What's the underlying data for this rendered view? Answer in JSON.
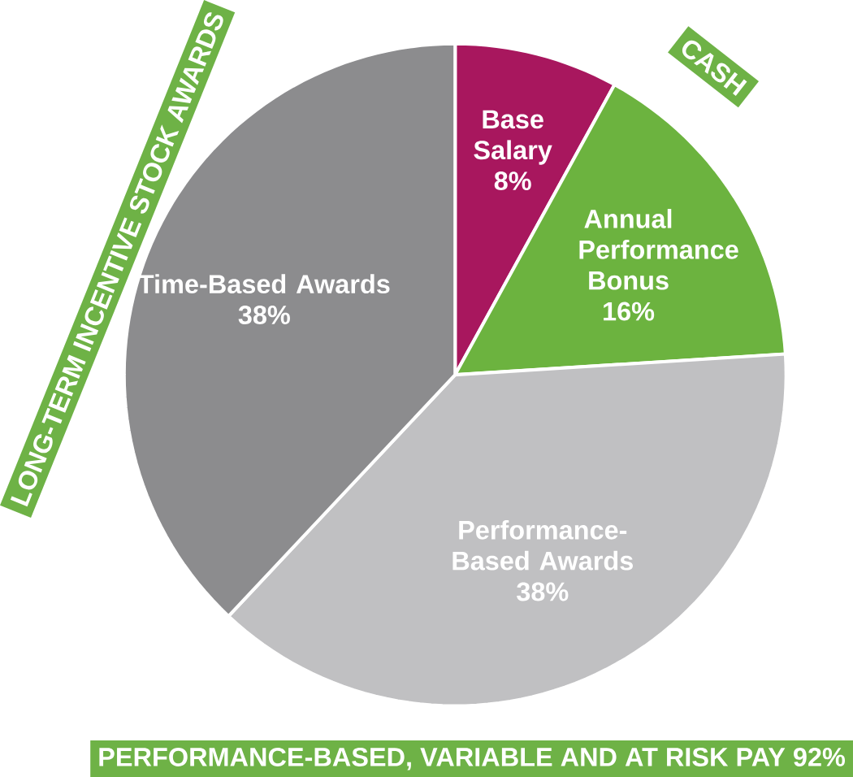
{
  "chart_data": {
    "type": "pie",
    "categories": [
      "Base Salary",
      "Annual Performance Bonus",
      "Performance-Based Awards",
      "Time-Based Awards"
    ],
    "values": [
      8,
      16,
      38,
      38
    ],
    "value_labels": [
      "8%",
      "16%",
      "38%",
      "38%"
    ],
    "colors": [
      "#a8175e",
      "#6cb33f",
      "#c0c0c2",
      "#8c8c8e"
    ],
    "annotations": [
      "CASH",
      "LONG-TERM INCENTIVE STOCK AWARDS",
      "PERFORMANCE-BASED, VARIABLE AND AT RISK PAY 92%"
    ]
  }
}
